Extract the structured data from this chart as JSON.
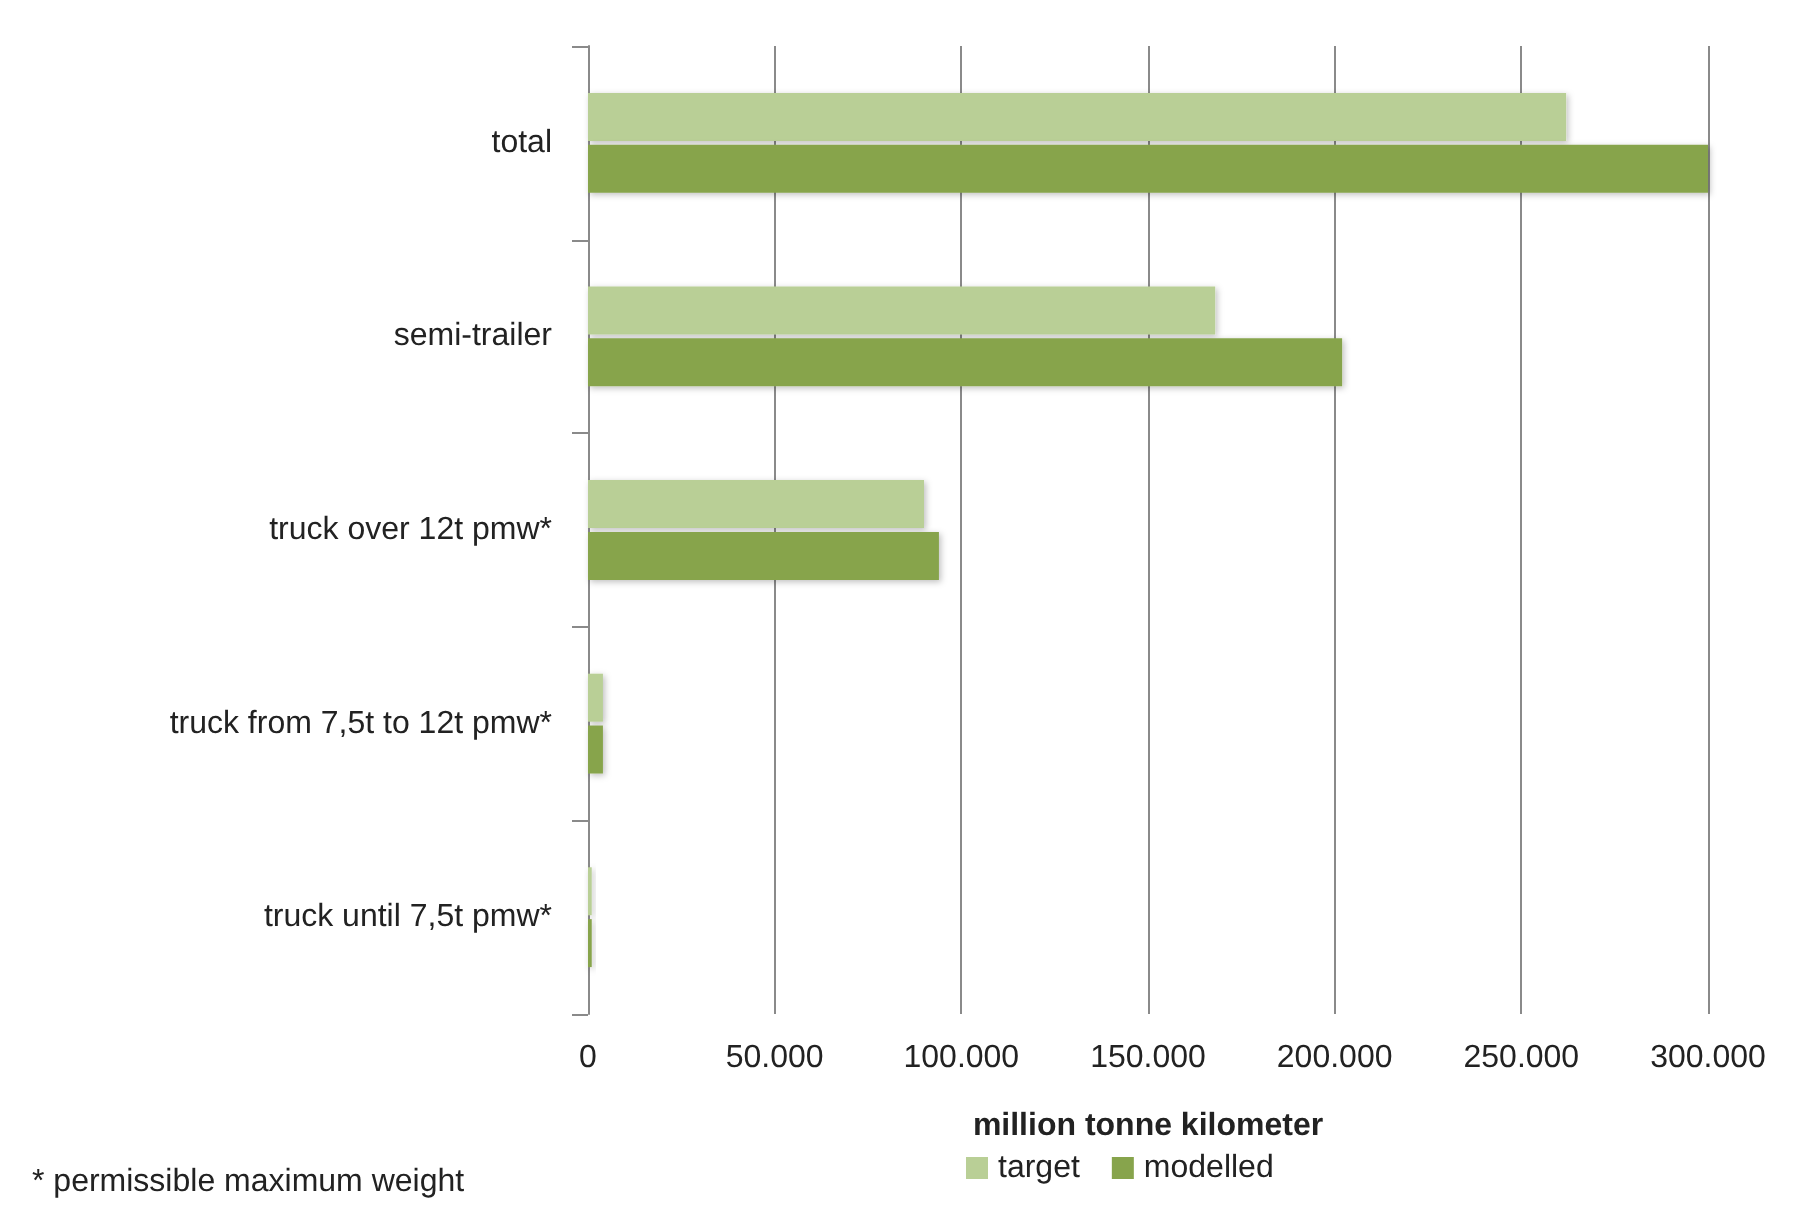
{
  "chart_data": {
    "type": "bar",
    "orientation": "horizontal",
    "categories": [
      "total",
      "semi-trailer",
      "truck over 12t pmw*",
      "truck from 7,5t to 12t pmw*",
      "truck until 7,5t pmw*"
    ],
    "series": [
      {
        "name": "target",
        "color": "#b9cf96",
        "values": [
          262000,
          168000,
          90000,
          4000,
          1000
        ]
      },
      {
        "name": "modelled",
        "color": "#87a44c",
        "values": [
          300000,
          202000,
          94000,
          4000,
          1000
        ]
      }
    ],
    "xlabel": "million tonne kilometer",
    "xlim": [
      0,
      300000
    ],
    "xticks": [
      {
        "value": 0,
        "label": "0"
      },
      {
        "value": 50000,
        "label": "50.000"
      },
      {
        "value": 100000,
        "label": "100.000"
      },
      {
        "value": 150000,
        "label": "150.000"
      },
      {
        "value": 200000,
        "label": "200.000"
      },
      {
        "value": 250000,
        "label": "250.000"
      },
      {
        "value": 300000,
        "label": "300.000"
      }
    ],
    "grid": "x",
    "legend": "bottom",
    "annotations": [
      "* permissible maximum weight"
    ]
  }
}
